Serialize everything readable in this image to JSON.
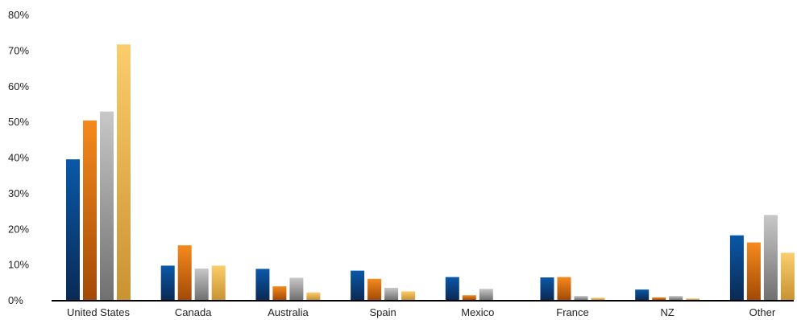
{
  "chart_data": {
    "type": "bar",
    "title": "",
    "xlabel": "",
    "ylabel": "",
    "ylim": [
      0,
      80
    ],
    "y_tick_format": "percent",
    "y_ticks": [
      0,
      10,
      20,
      30,
      40,
      50,
      60,
      70,
      80
    ],
    "y_tick_labels": [
      "0%",
      "10%",
      "20%",
      "30%",
      "40%",
      "50%",
      "60%",
      "70%",
      "80%"
    ],
    "grid": false,
    "legend": "none",
    "categories": [
      "United States",
      "Canada",
      "Australia",
      "Spain",
      "Mexico",
      "France",
      "NZ",
      "Other"
    ],
    "series": [
      {
        "color_top": "#0a58a8",
        "color_bottom": "#0a2a55",
        "values": [
          39.4,
          9.6,
          8.7,
          8.2,
          6.4,
          6.3,
          2.9,
          18.1
        ]
      },
      {
        "color_top": "#f58a1e",
        "color_bottom": "#a34a06",
        "values": [
          50.3,
          15.3,
          3.8,
          5.9,
          1.3,
          6.4,
          0.7,
          16.1
        ]
      },
      {
        "color_top": "#c8c8c8",
        "color_bottom": "#707070",
        "values": [
          52.8,
          8.8,
          6.2,
          3.4,
          3.1,
          1.1,
          1.1,
          23.8
        ]
      },
      {
        "color_top": "#fbcd6c",
        "color_bottom": "#c99332",
        "values": [
          71.6,
          9.6,
          2.1,
          2.4,
          0.0,
          0.6,
          0.4,
          13.2
        ]
      }
    ]
  }
}
